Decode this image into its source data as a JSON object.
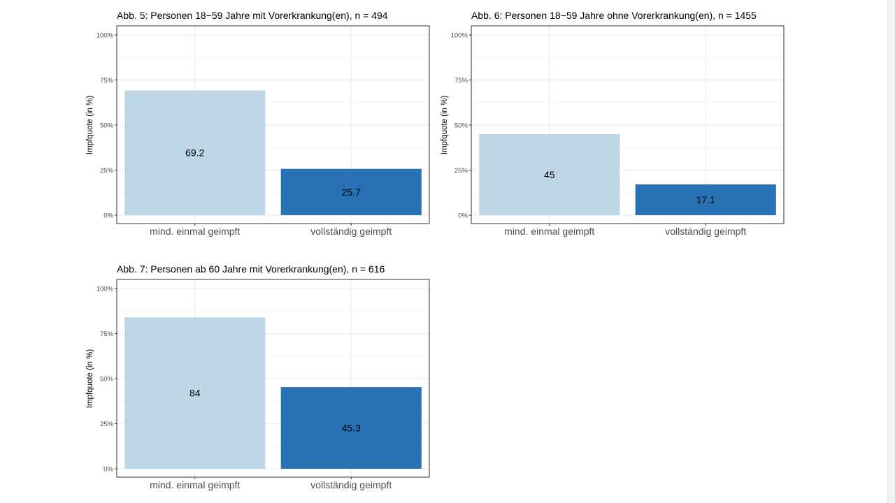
{
  "colors": {
    "light": "#bdd7e7",
    "dark": "#2871b4",
    "grid": "#ebebeb",
    "axis": "#333333"
  },
  "chart_data": [
    {
      "type": "bar",
      "title": "Abb. 5: Personen 18−59 Jahre mit Vorerkrankung(en), n =  494",
      "categories": [
        "mind. einmal geimpft",
        "vollständig geimpft"
      ],
      "values": [
        69.2,
        25.7
      ],
      "value_labels": [
        "69.2",
        "25.7"
      ],
      "ylabel": "Impfquote (in %)",
      "yticks": [
        "0%",
        "25%",
        "50%",
        "75%",
        "100%"
      ],
      "ylim": [
        0,
        100
      ],
      "grid": true
    },
    {
      "type": "bar",
      "title": "Abb. 6: Personen 18−59 Jahre ohne Vorerkrankung(en), n =  1455",
      "categories": [
        "mind. einmal geimpft",
        "vollständig geimpft"
      ],
      "values": [
        45,
        17.1
      ],
      "value_labels": [
        "45",
        "17.1"
      ],
      "ylabel": "Impfquote (in %)",
      "yticks": [
        "0%",
        "25%",
        "50%",
        "75%",
        "100%"
      ],
      "ylim": [
        0,
        100
      ],
      "grid": true
    },
    {
      "type": "bar",
      "title": "Abb. 7: Personen ab 60 Jahre mit Vorerkrankung(en), n =  616",
      "categories": [
        "mind. einmal geimpft",
        "vollständig geimpft"
      ],
      "values": [
        84,
        45.3
      ],
      "value_labels": [
        "84",
        "45.3"
      ],
      "ylabel": "Impfquote (in %)",
      "yticks": [
        "0%",
        "25%",
        "50%",
        "75%",
        "100%"
      ],
      "ylim": [
        0,
        100
      ],
      "grid": true
    }
  ]
}
